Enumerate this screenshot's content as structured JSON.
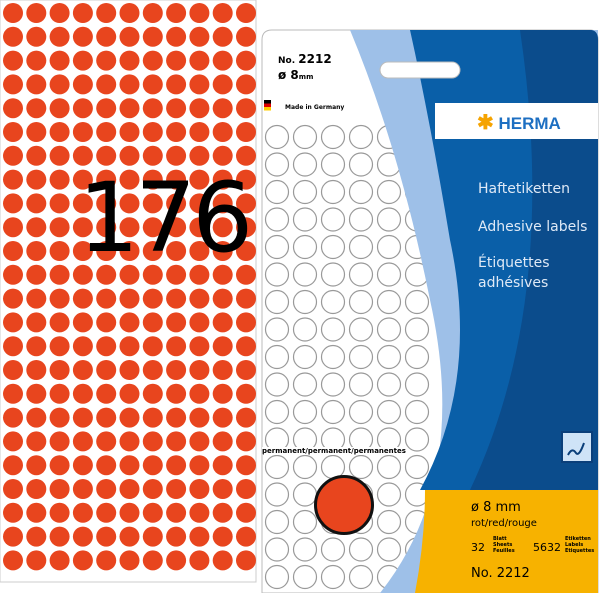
{
  "colors": {
    "dot_red": "#e8451e",
    "blue": "#0a5fa8",
    "dark_blue": "#0b3f7a",
    "light_blue": "#9ec0e8",
    "yellow": "#f7b200",
    "brand_blue": "#1d6fc2",
    "brand_orange": "#f5a300"
  },
  "sheet": {
    "count": "176"
  },
  "package": {
    "article_small": "No. 2212",
    "article_prefix": "No.",
    "article_number": "2212",
    "diameter_value": "ø 8",
    "diameter_unit": "mm",
    "made_in": "Made in Germany",
    "brand": "HERMA",
    "brand_icon": "asterisk-flower-icon",
    "lang_de": "Haftetiketten",
    "lang_en": "Adhesive labels",
    "lang_fr_1": "Étiquettes",
    "lang_fr_2": "adhésives",
    "permanent": "permanent/permanent/permanentes",
    "write_icon": "pen-writing-icon",
    "size": "ø 8 mm",
    "color": "rot/red/rouge",
    "sheets_count": "32",
    "sheets_label": [
      "Blatt",
      "Sheets",
      "Feuilles"
    ],
    "labels_count": "5632",
    "labels_label": [
      "Etiketten",
      "Labels",
      "Etiquettes"
    ],
    "article_bottom": "No. 2212"
  }
}
